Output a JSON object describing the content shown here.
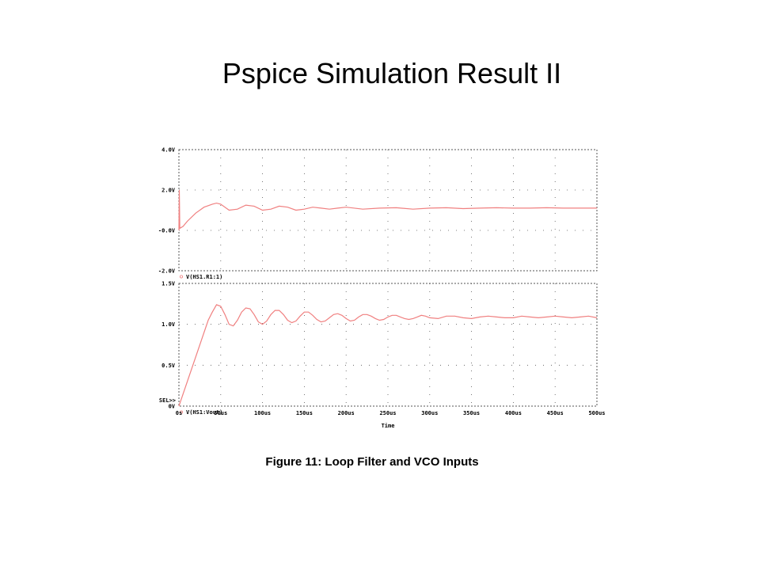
{
  "title": "Pspice Simulation Result II",
  "caption": "Figure 11: Loop Filter and VCO Inputs",
  "colors": {
    "trace": "#f08080",
    "grid": "#555555",
    "frame": "#555555"
  },
  "chart_data": {
    "type": "line",
    "x": {
      "label": "Time",
      "range": [
        0,
        500
      ],
      "unit": "us",
      "tick_values": [
        0,
        50,
        100,
        150,
        200,
        250,
        300,
        350,
        400,
        450,
        500
      ],
      "tick_labels": [
        "0s",
        "50us",
        "100us",
        "150us",
        "200us",
        "250us",
        "300us",
        "350us",
        "400us",
        "450us",
        "500us"
      ]
    },
    "sel_marker": "SEL>>",
    "panels": [
      {
        "ylim": [
          -2,
          4
        ],
        "y_tick_values": [
          -2,
          0,
          2,
          4
        ],
        "y_tick_labels": [
          "-2.0V",
          "-0.0V",
          "2.0V",
          "4.0V"
        ],
        "grid": true,
        "series": [
          {
            "name": "V(HS1.R1:1)",
            "x": [
              0,
              0.5,
              1,
              5,
              10,
              20,
              30,
              40,
              45,
              50,
              60,
              70,
              80,
              90,
              100,
              110,
              120,
              130,
              140,
              150,
              160,
              170,
              180,
              190,
              200,
              220,
              240,
              260,
              280,
              300,
              320,
              340,
              360,
              380,
              400,
              420,
              440,
              460,
              480,
              500
            ],
            "y": [
              0,
              2.0,
              0.1,
              0.2,
              0.45,
              0.85,
              1.15,
              1.3,
              1.35,
              1.3,
              1.0,
              1.05,
              1.25,
              1.2,
              1.0,
              1.05,
              1.2,
              1.15,
              1.0,
              1.05,
              1.15,
              1.1,
              1.05,
              1.1,
              1.15,
              1.05,
              1.1,
              1.12,
              1.05,
              1.1,
              1.12,
              1.08,
              1.1,
              1.12,
              1.1,
              1.1,
              1.12,
              1.1,
              1.1,
              1.1
            ]
          }
        ]
      },
      {
        "ylim": [
          0,
          1.5
        ],
        "y_tick_values": [
          0,
          0.5,
          1.0,
          1.5
        ],
        "y_tick_labels": [
          "0V",
          "0.5V",
          "1.0V",
          "1.5V"
        ],
        "grid": true,
        "series": [
          {
            "name": "V(HS1:Vout)",
            "x": [
              0,
              35,
              40,
              45,
              50,
              55,
              60,
              65,
              70,
              75,
              80,
              85,
              90,
              95,
              100,
              105,
              110,
              115,
              120,
              125,
              130,
              135,
              140,
              145,
              150,
              155,
              160,
              165,
              170,
              175,
              180,
              185,
              190,
              195,
              200,
              205,
              210,
              215,
              220,
              225,
              230,
              235,
              240,
              245,
              250,
              255,
              260,
              265,
              270,
              275,
              280,
              285,
              290,
              295,
              300,
              310,
              320,
              330,
              340,
              350,
              360,
              370,
              380,
              390,
              400,
              410,
              420,
              430,
              440,
              450,
              460,
              470,
              480,
              490,
              500
            ],
            "y": [
              0,
              1.05,
              1.15,
              1.24,
              1.22,
              1.12,
              1.0,
              0.98,
              1.05,
              1.15,
              1.2,
              1.19,
              1.12,
              1.03,
              1.0,
              1.04,
              1.12,
              1.17,
              1.17,
              1.12,
              1.05,
              1.02,
              1.04,
              1.1,
              1.15,
              1.15,
              1.11,
              1.06,
              1.03,
              1.04,
              1.08,
              1.12,
              1.13,
              1.11,
              1.07,
              1.04,
              1.05,
              1.09,
              1.12,
              1.12,
              1.1,
              1.07,
              1.05,
              1.06,
              1.09,
              1.11,
              1.11,
              1.09,
              1.07,
              1.06,
              1.07,
              1.09,
              1.11,
              1.1,
              1.08,
              1.07,
              1.1,
              1.1,
              1.08,
              1.07,
              1.09,
              1.1,
              1.09,
              1.08,
              1.08,
              1.1,
              1.09,
              1.08,
              1.09,
              1.1,
              1.09,
              1.08,
              1.09,
              1.1,
              1.08
            ]
          }
        ]
      }
    ]
  }
}
